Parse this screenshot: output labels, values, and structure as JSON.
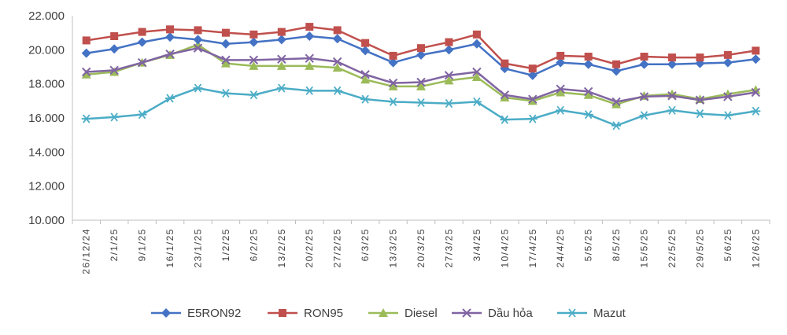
{
  "chart_data": {
    "type": "line",
    "title": "",
    "xlabel": "",
    "ylabel": "",
    "ylim": [
      10000,
      22000
    ],
    "y_ticks": [
      "10.000",
      "12.000",
      "14.000",
      "16.000",
      "18.000",
      "20.000",
      "22.000"
    ],
    "y_tick_values": [
      10000,
      12000,
      14000,
      16000,
      18000,
      20000,
      22000
    ],
    "grid": false,
    "legend_position": "bottom",
    "categories": [
      "26/12/24",
      "2/1/25",
      "9/1/25",
      "16/1/25",
      "23/1/25",
      "1/2/25",
      "6/2/25",
      "13/2/25",
      "20/2/25",
      "27/2/25",
      "6/3/25",
      "13/3/25",
      "20/3/25",
      "27/3/25",
      "3/4/25",
      "10/4/25",
      "17/4/25",
      "24/4/25",
      "5/5/25",
      "8/5/25",
      "15/5/25",
      "22/5/25",
      "29/5/25",
      "5/6/25",
      "12/6/25"
    ],
    "labeled_categories": [
      "26/12/24",
      "2/1/25",
      "9/1/25",
      "16/1/25",
      "23/1/25",
      "1/2/25",
      "6/2/25",
      "13/2/25",
      "20/2/25",
      "27/2/25",
      "6/3/25",
      "13/3/25",
      "20/3/25",
      "27/3/25",
      "3/4/25",
      "10/4/25",
      "17/4/25",
      "24/4/25",
      "5/5/25",
      "8/5/25",
      "15/5/25",
      "22/5/25",
      "29/5/25",
      "5/6/25",
      "12/6/25"
    ],
    "series": [
      {
        "name": "E5RON92",
        "color": "#4472C4",
        "marker": "diamond",
        "values": [
          19800,
          20050,
          20450,
          20750,
          20600,
          20350,
          20450,
          20600,
          20800,
          20650,
          19950,
          19250,
          19700,
          20000,
          20350,
          18900,
          18500,
          19250,
          19150,
          18750,
          19150,
          19150,
          19200,
          19250,
          19450
        ]
      },
      {
        "name": "RON95",
        "color": "#C0504D",
        "marker": "square",
        "values": [
          20550,
          20800,
          21050,
          21200,
          21150,
          21000,
          20900,
          21050,
          21350,
          21150,
          20400,
          19650,
          20100,
          20450,
          20900,
          19200,
          18900,
          19650,
          19600,
          19150,
          19600,
          19550,
          19550,
          19700,
          19950
        ]
      },
      {
        "name": "Diesel",
        "color": "#9BBB59",
        "marker": "triangle",
        "values": [
          18550,
          18700,
          19250,
          19700,
          20300,
          19200,
          19050,
          19050,
          19050,
          18950,
          18250,
          17850,
          17850,
          18200,
          18400,
          17200,
          17000,
          17500,
          17350,
          16800,
          17300,
          17400,
          17100,
          17400,
          17650
        ]
      },
      {
        "name": "Dầu hỏa",
        "color": "#8064A2",
        "marker": "x",
        "values": [
          18700,
          18800,
          19250,
          19750,
          20100,
          19400,
          19400,
          19450,
          19500,
          19300,
          18550,
          18050,
          18100,
          18500,
          18700,
          17350,
          17100,
          17700,
          17550,
          16950,
          17250,
          17300,
          17050,
          17250,
          17500
        ]
      },
      {
        "name": "Mazut",
        "color": "#4BACC6",
        "marker": "star",
        "values": [
          15950,
          16050,
          16200,
          17150,
          17750,
          17450,
          17350,
          17750,
          17600,
          17600,
          17100,
          16950,
          16900,
          16850,
          16950,
          15900,
          15950,
          16450,
          16200,
          15550,
          16150,
          16450,
          16250,
          16150,
          16400
        ]
      }
    ]
  }
}
